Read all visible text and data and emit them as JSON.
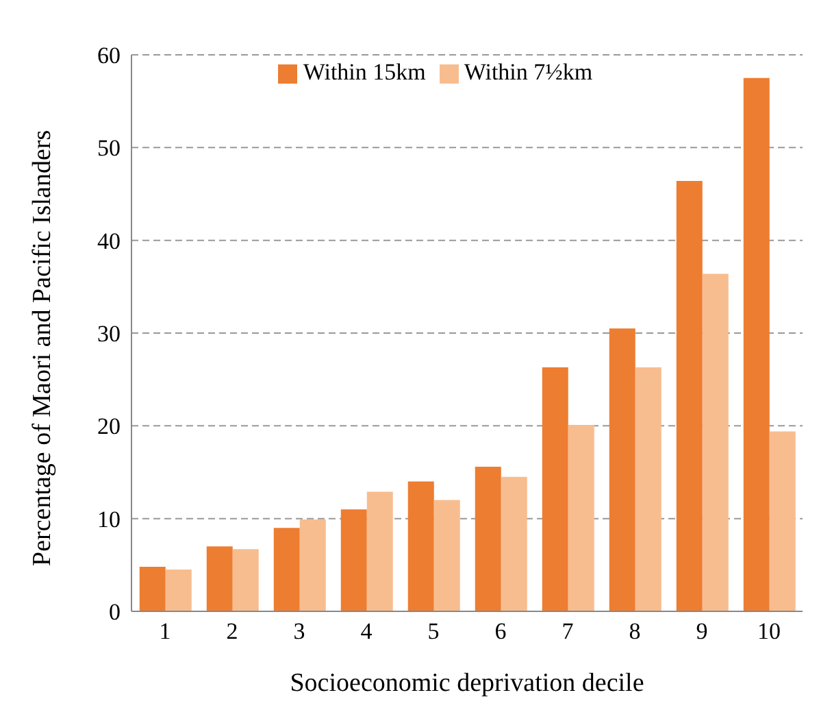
{
  "chart_data": {
    "type": "bar",
    "xlabel": "Socioeconomic deprivation decile",
    "ylabel": "Percentage of Maori and Pacific Islanders",
    "categories": [
      "1",
      "2",
      "3",
      "4",
      "5",
      "6",
      "7",
      "8",
      "9",
      "10"
    ],
    "series": [
      {
        "name": "Within 15km",
        "color": "#ed7d31",
        "values": [
          4.8,
          7.0,
          9.0,
          11.0,
          14.0,
          15.6,
          26.3,
          30.5,
          46.4,
          57.5
        ]
      },
      {
        "name": "Within 7½km",
        "color": "#f8bd8f",
        "values": [
          4.5,
          6.7,
          9.9,
          12.9,
          12.0,
          14.5,
          20.1,
          26.3,
          36.4,
          19.4
        ]
      }
    ],
    "ylim": [
      0,
      60
    ],
    "yticks": [
      0,
      10,
      20,
      30,
      40,
      50,
      60
    ],
    "grid": "y",
    "legend": "top"
  }
}
